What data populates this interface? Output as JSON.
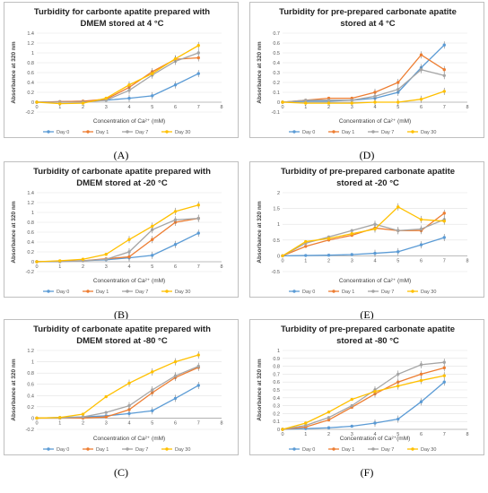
{
  "colors": {
    "Day 0": "#5b9bd5",
    "Day 1": "#ed7d31",
    "Day 7": "#a5a5a5",
    "Day 30": "#ffc000"
  },
  "chart_data": [
    {
      "panel": "(A)",
      "type": "line",
      "title": [
        "Turbidity for carbonte apatite prepared with",
        "DMEM stored at 4 °C"
      ],
      "xlabel": "Concentration of Ca²⁺ (mM)",
      "ylabel": "Absorbance at 320 nm",
      "xlim": [
        0,
        8
      ],
      "ylim": [
        -0.2,
        1.4
      ],
      "yticks": [
        "-0.2",
        "0",
        "0.2",
        "0.4",
        "0.6",
        "0.8",
        "1",
        "1.2",
        "1.4"
      ],
      "x": [
        0,
        1,
        2,
        3,
        4,
        5,
        6,
        7
      ],
      "series": [
        {
          "name": "Day 0",
          "values": [
            0,
            0.01,
            0.02,
            0.04,
            0.08,
            0.13,
            0.35,
            0.58
          ]
        },
        {
          "name": "Day 1",
          "values": [
            0,
            0.01,
            0.02,
            0.06,
            0.3,
            0.62,
            0.87,
            0.9
          ]
        },
        {
          "name": "Day 7",
          "values": [
            0,
            0.0,
            0.0,
            0.04,
            0.24,
            0.55,
            0.83,
            1.0
          ]
        },
        {
          "name": "Day 30",
          "values": [
            0,
            -0.03,
            -0.02,
            0.08,
            0.35,
            0.58,
            0.88,
            1.15
          ]
        }
      ],
      "grid": true,
      "legend": "bottom"
    },
    {
      "panel": "(D)",
      "type": "line",
      "title": [
        "Turbidity for pre-prepared carbonate apatite",
        "stored at 4 °C"
      ],
      "xlabel": "Concentration of Ca²⁺ (mM)",
      "ylabel": "Absorbance at 320 nm",
      "xlim": [
        0,
        8
      ],
      "ylim": [
        -0.1,
        0.7
      ],
      "yticks": [
        "-0.1",
        "0",
        "0.1",
        "0.2",
        "0.3",
        "0.4",
        "0.5",
        "0.6",
        "0.7"
      ],
      "x": [
        0,
        1,
        2,
        3,
        4,
        5,
        6,
        7
      ],
      "series": [
        {
          "name": "Day 0",
          "values": [
            0,
            0.01,
            0.01,
            0.02,
            0.04,
            0.1,
            0.35,
            0.58
          ]
        },
        {
          "name": "Day 1",
          "values": [
            0,
            0.02,
            0.04,
            0.04,
            0.1,
            0.2,
            0.48,
            0.33
          ]
        },
        {
          "name": "Day 7",
          "values": [
            0,
            0.02,
            0.02,
            0.02,
            0.06,
            0.13,
            0.33,
            0.27
          ]
        },
        {
          "name": "Day 30",
          "values": [
            0,
            -0.01,
            -0.01,
            -0.01,
            0.0,
            0.0,
            0.03,
            0.11
          ]
        }
      ],
      "grid": true,
      "legend": "bottom"
    },
    {
      "panel": "(B)",
      "type": "line",
      "title": [
        "Turbidity of carbonate apatite prepared with",
        "DMEM stored at -20 °C"
      ],
      "xlabel": "Concentration of Ca²⁺ (mM)",
      "ylabel": "Absorbance at 320 nm",
      "xlim": [
        0,
        8
      ],
      "ylim": [
        -0.2,
        1.4
      ],
      "yticks": [
        "-0.2",
        "0",
        "0.2",
        "0.4",
        "0.6",
        "0.8",
        "1",
        "1.2",
        "1.4"
      ],
      "x": [
        0,
        1,
        2,
        3,
        4,
        5,
        6,
        7
      ],
      "series": [
        {
          "name": "Day 0",
          "values": [
            0,
            0.01,
            0.02,
            0.04,
            0.08,
            0.13,
            0.35,
            0.58
          ]
        },
        {
          "name": "Day 1",
          "values": [
            0,
            0.01,
            0.02,
            0.06,
            0.1,
            0.45,
            0.8,
            0.88
          ]
        },
        {
          "name": "Day 7",
          "values": [
            0,
            0.0,
            0.02,
            0.05,
            0.2,
            0.65,
            0.85,
            0.88
          ]
        },
        {
          "name": "Day 30",
          "values": [
            0,
            0.02,
            0.05,
            0.15,
            0.45,
            0.72,
            1.02,
            1.15
          ]
        }
      ],
      "grid": true,
      "legend": "bottom"
    },
    {
      "panel": "(E)",
      "type": "line",
      "title": [
        "Turbidity of pre-prepared carbonate apatite",
        "stored at -20 °C"
      ],
      "xlabel": "Concentration of Ca²⁺ (mM)",
      "ylabel": "Absorbance at 320 nm",
      "xlim": [
        0,
        8
      ],
      "ylim": [
        -0.5,
        2
      ],
      "yticks": [
        "-0.5",
        "0",
        "0.5",
        "1",
        "1.5",
        "2"
      ],
      "x": [
        0,
        1,
        2,
        3,
        4,
        5,
        6,
        7
      ],
      "series": [
        {
          "name": "Day 0",
          "values": [
            0,
            0.01,
            0.02,
            0.04,
            0.08,
            0.13,
            0.35,
            0.58
          ]
        },
        {
          "name": "Day 1",
          "values": [
            0,
            0.3,
            0.5,
            0.65,
            0.88,
            0.8,
            0.8,
            1.35
          ]
        },
        {
          "name": "Day 7",
          "values": [
            0,
            0.4,
            0.6,
            0.8,
            1.0,
            0.8,
            0.85,
            1.15
          ]
        },
        {
          "name": "Day 30",
          "values": [
            0,
            0.45,
            0.55,
            0.7,
            0.85,
            1.55,
            1.15,
            1.1
          ]
        }
      ],
      "grid": true,
      "legend": "bottom"
    },
    {
      "panel": "(C)",
      "type": "line",
      "title": [
        "Turbidity of carbonate apatite prepared with",
        "DMEM stored at -80 °C"
      ],
      "xlabel": "Concentration of Ca²⁺ (mM)",
      "ylabel": "Absorbance at 320 nm",
      "xlim": [
        0,
        8
      ],
      "ylim": [
        -0.2,
        1.2
      ],
      "yticks": [
        "-0.2",
        "0",
        "0.2",
        "0.4",
        "0.6",
        "0.8",
        "1",
        "1.2"
      ],
      "x": [
        0,
        1,
        2,
        3,
        4,
        5,
        6,
        7
      ],
      "series": [
        {
          "name": "Day 0",
          "values": [
            0,
            0.01,
            0.02,
            0.04,
            0.08,
            0.13,
            0.35,
            0.58
          ]
        },
        {
          "name": "Day 1",
          "values": [
            0,
            0.0,
            0.0,
            0.02,
            0.15,
            0.45,
            0.72,
            0.9
          ]
        },
        {
          "name": "Day 7",
          "values": [
            0,
            0.0,
            0.02,
            0.1,
            0.22,
            0.5,
            0.75,
            0.92
          ]
        },
        {
          "name": "Day 30",
          "values": [
            0,
            0.01,
            0.07,
            0.38,
            0.62,
            0.82,
            1.0,
            1.12
          ]
        }
      ],
      "grid": true,
      "legend": "bottom"
    },
    {
      "panel": "(F)",
      "type": "line",
      "title": [
        "Turbidity of pre-prepared carbonate apatite",
        "stored at -80 °C"
      ],
      "xlabel": "Concentration of Ca²⁺(mM)",
      "ylabel": "Absorbance at 320 nm",
      "xlim": [
        0,
        8
      ],
      "ylim": [
        0,
        1
      ],
      "yticks": [
        "0",
        "0.1",
        "0.2",
        "0.3",
        "0.4",
        "0.5",
        "0.6",
        "0.7",
        "0.8",
        "0.9",
        "1"
      ],
      "x": [
        0,
        1,
        2,
        3,
        4,
        5,
        6,
        7
      ],
      "series": [
        {
          "name": "Day 0",
          "values": [
            0,
            0.01,
            0.02,
            0.04,
            0.08,
            0.13,
            0.35,
            0.6
          ]
        },
        {
          "name": "Day 1",
          "values": [
            0,
            0.03,
            0.12,
            0.28,
            0.45,
            0.6,
            0.7,
            0.78
          ]
        },
        {
          "name": "Day 7",
          "values": [
            0,
            0.05,
            0.15,
            0.3,
            0.5,
            0.7,
            0.82,
            0.85
          ]
        },
        {
          "name": "Day 30",
          "values": [
            0,
            0.08,
            0.22,
            0.38,
            0.48,
            0.55,
            0.62,
            0.68
          ]
        }
      ],
      "grid": true,
      "legend": "bottom"
    }
  ]
}
